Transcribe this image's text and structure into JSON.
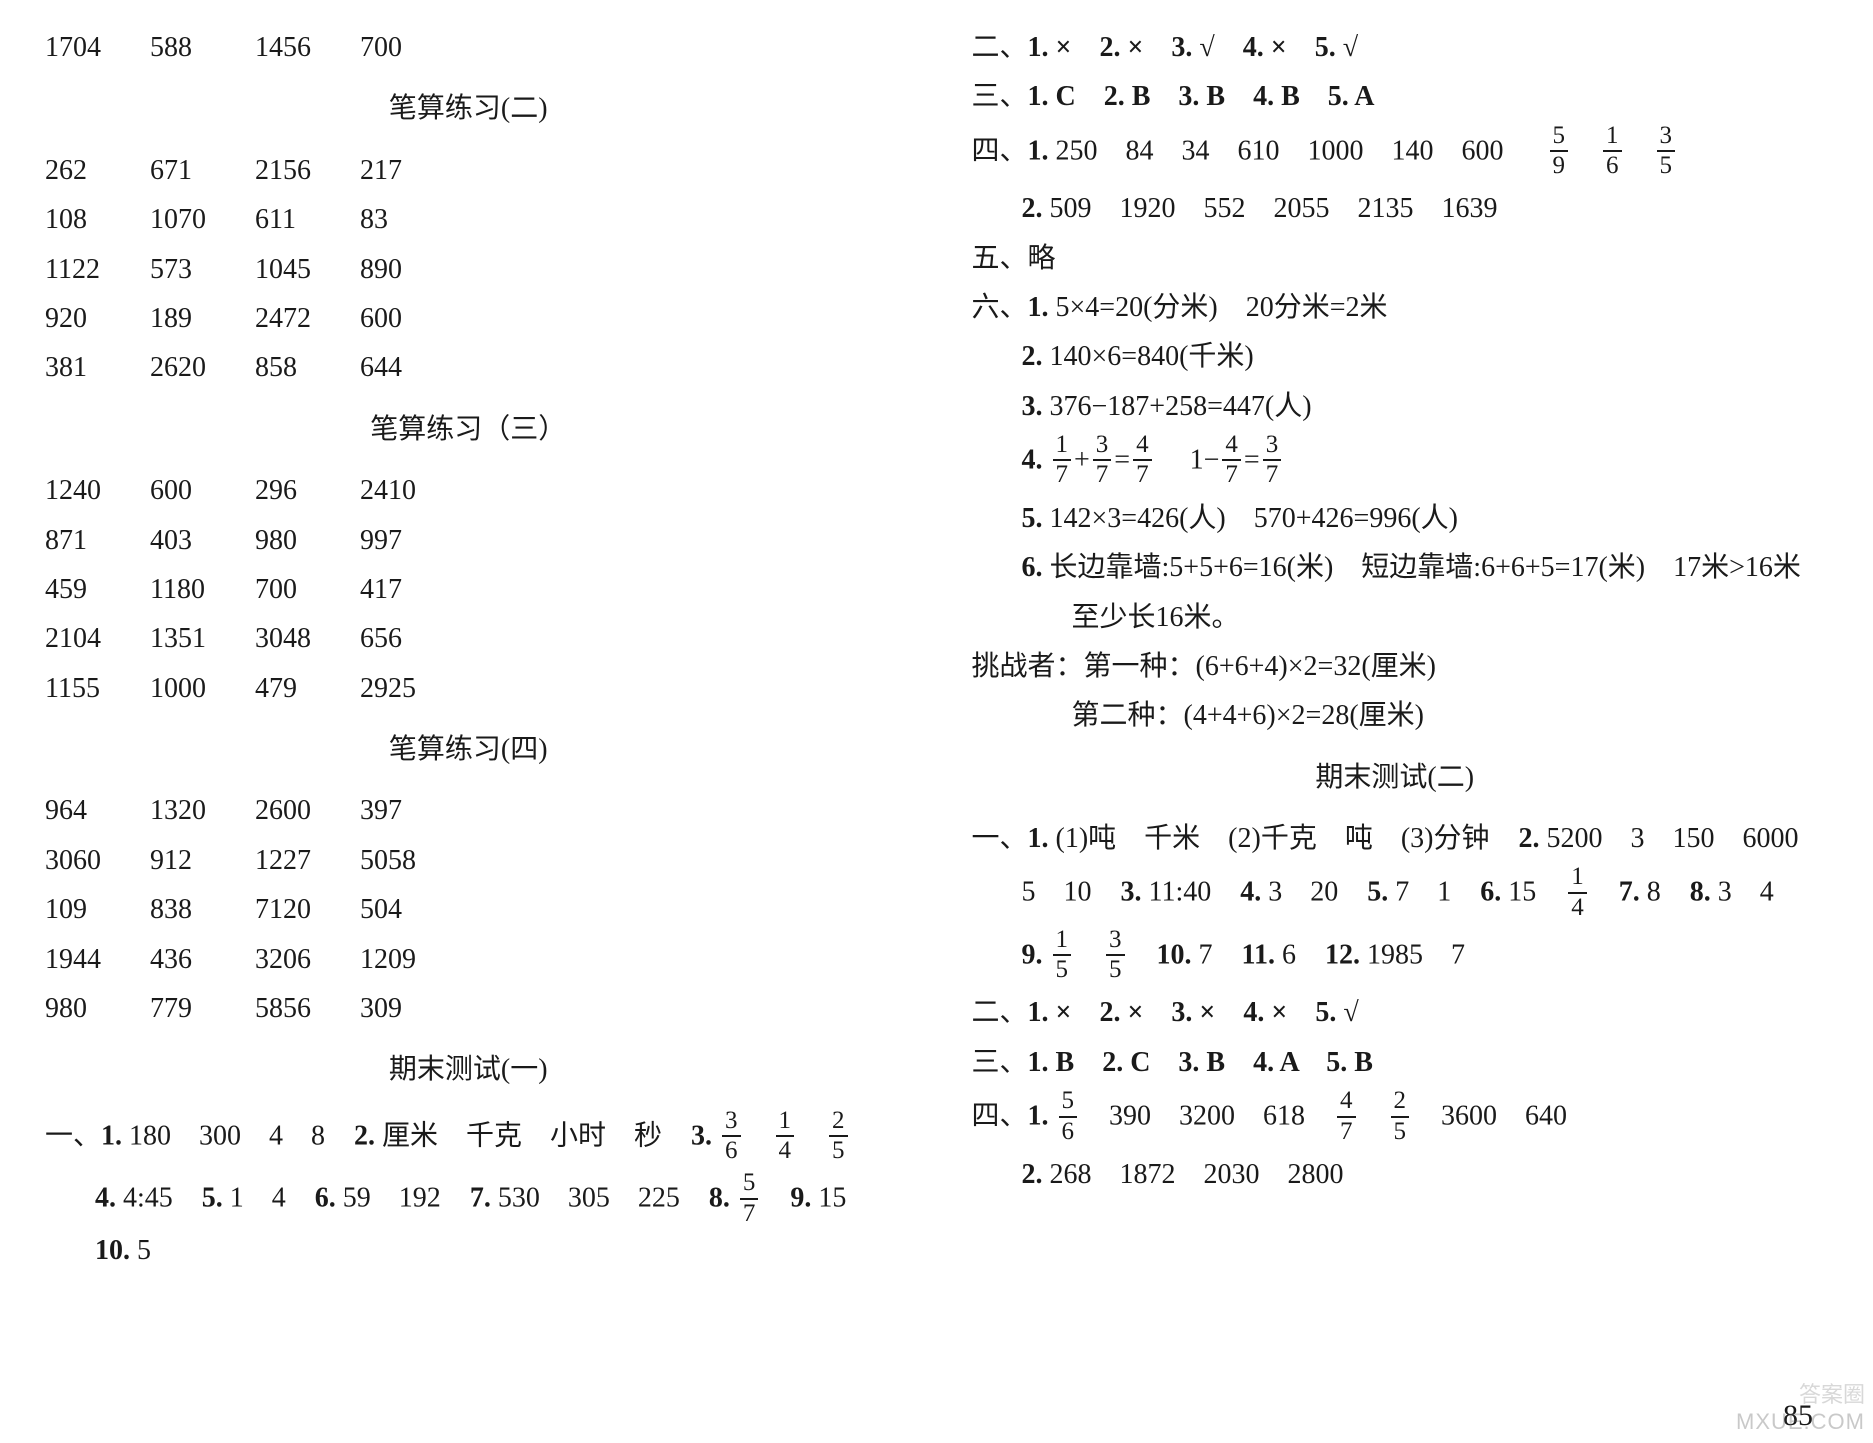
{
  "left": {
    "row1": [
      "1704",
      "588",
      "1456",
      "700"
    ],
    "heading2": "笔算练习(二)",
    "grid2": [
      [
        "262",
        "671",
        "2156",
        "217"
      ],
      [
        "108",
        "1070",
        "611",
        "83"
      ],
      [
        "1122",
        "573",
        "1045",
        "890"
      ],
      [
        "920",
        "189",
        "2472",
        "600"
      ],
      [
        "381",
        "2620",
        "858",
        "644"
      ]
    ],
    "heading3": "笔算练习（三）",
    "grid3": [
      [
        "1240",
        "600",
        "296",
        "2410"
      ],
      [
        "871",
        "403",
        "980",
        "997"
      ],
      [
        "459",
        "1180",
        "700",
        "417"
      ],
      [
        "2104",
        "1351",
        "3048",
        "656"
      ],
      [
        "1155",
        "1000",
        "479",
        "2925"
      ]
    ],
    "heading4": "笔算练习(四)",
    "grid4": [
      [
        "964",
        "1320",
        "2600",
        "397"
      ],
      [
        "3060",
        "912",
        "1227",
        "5058"
      ],
      [
        "109",
        "838",
        "7120",
        "504"
      ],
      [
        "1944",
        "436",
        "3206",
        "1209"
      ],
      [
        "980",
        "779",
        "5856",
        "309"
      ]
    ],
    "heading_test1": "期末测试(一)",
    "test1_line1_prefix": "一、",
    "test1_q1_lbl": "1.",
    "test1_q1_vals": "180　300　4　8",
    "test1_q2_lbl": "2.",
    "test1_q2_vals": "厘米　千克　小时　秒",
    "test1_q3_lbl": "3.",
    "test1_q3_f1n": "3",
    "test1_q3_f1d": "6",
    "test1_q3_f2n": "1",
    "test1_q3_f2d": "4",
    "test1_q3_f3n": "2",
    "test1_q3_f3d": "5",
    "test1_q4_lbl": "4.",
    "test1_q4_val": "4:45",
    "test1_q5_lbl": "5.",
    "test1_q5_val": "1　4",
    "test1_q6_lbl": "6.",
    "test1_q6_val": "59　192",
    "test1_q7_lbl": "7.",
    "test1_q7_val": "530　305　225",
    "test1_q8_lbl": "8.",
    "test1_q8_fn": "5",
    "test1_q8_fd": "7",
    "test1_q9_lbl": "9.",
    "test1_q9_val": "15",
    "test1_q10_lbl": "10.",
    "test1_q10_val": "5"
  },
  "right": {
    "sec2": "二、",
    "s2_items": "1. ×　2. ×　3. √　4. ×　5. √",
    "sec3": "三、",
    "s3_items": "1. C　2. B　3. B　4. B　5. A",
    "sec4": "四、",
    "s4_q1_lbl": "1.",
    "s4_q1_vals": "250　84　34　610　1000　140　600",
    "s4_q1_f1n": "5",
    "s4_q1_f1d": "9",
    "s4_q1_f2n": "1",
    "s4_q1_f2d": "6",
    "s4_q1_f3n": "3",
    "s4_q1_f3d": "5",
    "s4_q2_lbl": "2.",
    "s4_q2_vals": "509　1920　552　2055　2135　1639",
    "sec5": "五、略",
    "sec6": "六、",
    "s6_q1_lbl": "1.",
    "s6_q1_val": "5×4=20(分米)　20分米=2米",
    "s6_q2_lbl": "2.",
    "s6_q2_val": "140×6=840(千米)",
    "s6_q3_lbl": "3.",
    "s6_q3_val": "376−187+258=447(人)",
    "s6_q4_lbl": "4.",
    "s6_q4_f1n": "1",
    "s6_q4_f1d": "7",
    "s6_q4_plus": "+",
    "s6_q4_f2n": "3",
    "s6_q4_f2d": "7",
    "s6_q4_eq1": "=",
    "s6_q4_f3n": "4",
    "s6_q4_f3d": "7",
    "s6_q4_mid": "　1−",
    "s6_q4_f4n": "4",
    "s6_q4_f4d": "7",
    "s6_q4_eq2": "=",
    "s6_q4_f5n": "3",
    "s6_q4_f5d": "7",
    "s6_q5_lbl": "5.",
    "s6_q5_val": "142×3=426(人)　570+426=996(人)",
    "s6_q6_lbl": "6.",
    "s6_q6_val": "长边靠墙:5+5+6=16(米)　短边靠墙:6+6+5=17(米)　17米>16米",
    "s6_q6_line2": "至少长16米。",
    "challenge_lbl": "挑战者：",
    "challenge_l1": "第一种：(6+6+4)×2=32(厘米)",
    "challenge_l2": "第二种：(4+4+6)×2=28(厘米)",
    "heading_test2": "期末测试(二)",
    "t2_sec1": "一、",
    "t2_q1_lbl": "1.",
    "t2_q1_val": "(1)吨　千米　(2)千克　吨　(3)分钟",
    "t2_q2_lbl": "2.",
    "t2_q2_val": "5200　3　150　6000",
    "t2_line2_a": "5　10",
    "t2_q3_lbl": "3.",
    "t2_q3_val": "11:40",
    "t2_q4_lbl": "4.",
    "t2_q4_val": "3　20",
    "t2_q5_lbl": "5.",
    "t2_q5_val": "7　1",
    "t2_q6_lbl": "6.",
    "t2_q6_val": "15",
    "t2_q6_fn": "1",
    "t2_q6_fd": "4",
    "t2_q7_lbl": "7.",
    "t2_q7_val": "8",
    "t2_q8_lbl": "8.",
    "t2_q8_val": "3　4",
    "t2_q9_lbl": "9.",
    "t2_q9_f1n": "1",
    "t2_q9_f1d": "5",
    "t2_q9_f2n": "3",
    "t2_q9_f2d": "5",
    "t2_q10_lbl": "10.",
    "t2_q10_val": "7",
    "t2_q11_lbl": "11.",
    "t2_q11_val": "6",
    "t2_q12_lbl": "12.",
    "t2_q12_val": "1985　7",
    "t2_sec2": "二、",
    "t2_s2_items": "1. ×　2. ×　3. ×　4. ×　5. √",
    "t2_sec3": "三、",
    "t2_s3_items": "1. B　2. C　3. B　4. A　5. B",
    "t2_sec4": "四、",
    "t2_s4_q1_lbl": "1.",
    "t2_s4_q1_f1n": "5",
    "t2_s4_q1_f1d": "6",
    "t2_s4_q1_mid": "390　3200　618",
    "t2_s4_q1_f2n": "4",
    "t2_s4_q1_f2d": "7",
    "t2_s4_q1_f3n": "2",
    "t2_s4_q1_f3d": "5",
    "t2_s4_q1_end": "3600　640",
    "t2_s4_q2_lbl": "2.",
    "t2_s4_q2_val": "268　1872　2030　2800"
  },
  "pagenum": "85",
  "wm1": "MXUE.COM",
  "wm2": "答案圈"
}
